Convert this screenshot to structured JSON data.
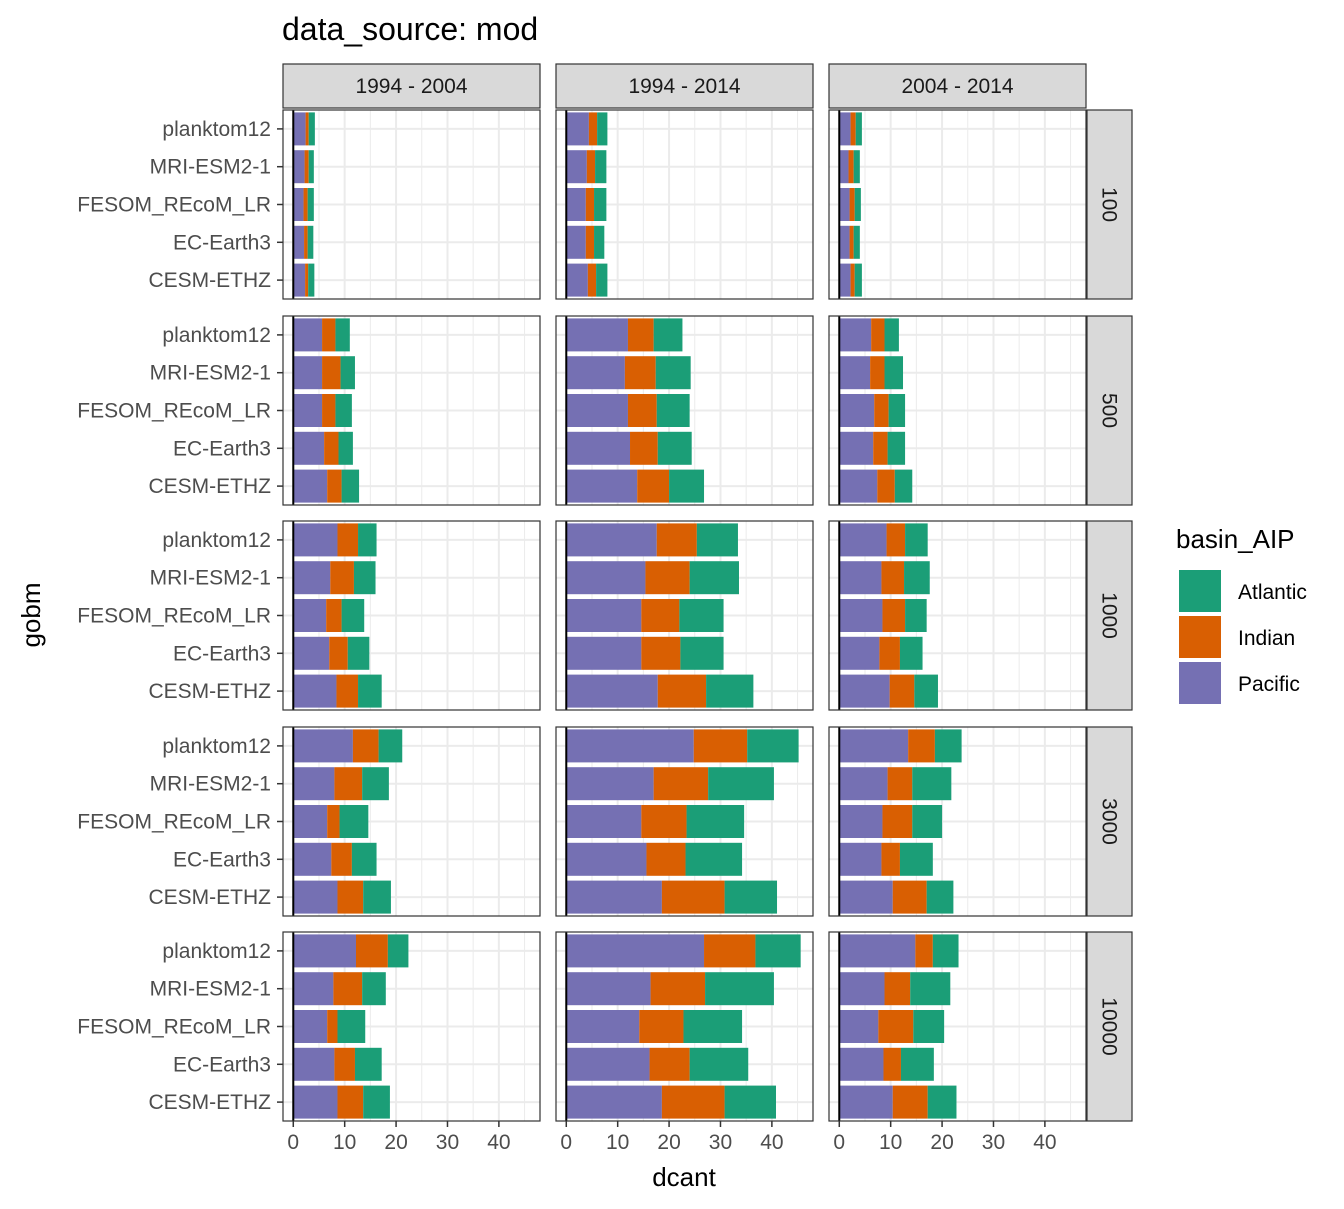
{
  "chart_data": {
    "type": "bar",
    "orientation": "horizontal",
    "stacked": true,
    "title": "data_source: mod",
    "xlabel": "dcant",
    "ylabel": "gobm",
    "xlim": [
      -2,
      48
    ],
    "x_ticks": [
      "0",
      "10",
      "20",
      "30",
      "40"
    ],
    "grid": true,
    "legend": {
      "title": "basin_AIP",
      "position": "right",
      "entries": [
        {
          "name": "Atlantic",
          "color": "#1B9E77"
        },
        {
          "name": "Indian",
          "color": "#D95F02"
        },
        {
          "name": "Pacific",
          "color": "#7570B3"
        }
      ]
    },
    "categories": [
      "planktom12",
      "MRI-ESM2-1",
      "FESOM_REcoM_LR",
      "EC-Earth3",
      "CESM-ETHZ"
    ],
    "columns": [
      "1994 - 2004",
      "1994 - 2014",
      "2004 - 2014"
    ],
    "rows": [
      "100",
      "500",
      "1000",
      "3000",
      "10000"
    ],
    "series_order": [
      "Pacific",
      "Indian",
      "Atlantic"
    ],
    "panels": [
      {
        "row": "100",
        "column": "1994 - 2004",
        "values": {
          "planktom12": {
            "Pacific": 2.4,
            "Indian": 0.6,
            "Atlantic": 1.2
          },
          "MRI-ESM2-1": {
            "Pacific": 2.2,
            "Indian": 0.8,
            "Atlantic": 1.0
          },
          "FESOM_REcoM_LR": {
            "Pacific": 2.0,
            "Indian": 0.8,
            "Atlantic": 1.2
          },
          "EC-Earth3": {
            "Pacific": 2.1,
            "Indian": 0.7,
            "Atlantic": 1.1
          },
          "CESM-ETHZ": {
            "Pacific": 2.3,
            "Indian": 0.6,
            "Atlantic": 1.2
          }
        }
      },
      {
        "row": "100",
        "column": "1994 - 2014",
        "values": {
          "planktom12": {
            "Pacific": 4.4,
            "Indian": 1.6,
            "Atlantic": 2.0
          },
          "MRI-ESM2-1": {
            "Pacific": 4.0,
            "Indian": 1.6,
            "Atlantic": 2.2
          },
          "FESOM_REcoM_LR": {
            "Pacific": 3.8,
            "Indian": 1.6,
            "Atlantic": 2.4
          },
          "EC-Earth3": {
            "Pacific": 3.8,
            "Indian": 1.6,
            "Atlantic": 2.0
          },
          "CESM-ETHZ": {
            "Pacific": 4.2,
            "Indian": 1.6,
            "Atlantic": 2.2
          }
        }
      },
      {
        "row": "100",
        "column": "2004 - 2014",
        "values": {
          "planktom12": {
            "Pacific": 2.2,
            "Indian": 1.0,
            "Atlantic": 1.2
          },
          "MRI-ESM2-1": {
            "Pacific": 1.8,
            "Indian": 1.0,
            "Atlantic": 1.2
          },
          "FESOM_REcoM_LR": {
            "Pacific": 2.0,
            "Indian": 1.0,
            "Atlantic": 1.2
          },
          "EC-Earth3": {
            "Pacific": 2.0,
            "Indian": 0.8,
            "Atlantic": 1.2
          },
          "CESM-ETHZ": {
            "Pacific": 2.2,
            "Indian": 0.8,
            "Atlantic": 1.4
          }
        }
      },
      {
        "row": "500",
        "column": "1994 - 2004",
        "values": {
          "planktom12": {
            "Pacific": 5.6,
            "Indian": 2.6,
            "Atlantic": 2.8
          },
          "MRI-ESM2-1": {
            "Pacific": 5.6,
            "Indian": 3.6,
            "Atlantic": 2.8
          },
          "FESOM_REcoM_LR": {
            "Pacific": 5.6,
            "Indian": 2.6,
            "Atlantic": 3.2
          },
          "EC-Earth3": {
            "Pacific": 6.0,
            "Indian": 2.8,
            "Atlantic": 2.8
          },
          "CESM-ETHZ": {
            "Pacific": 6.6,
            "Indian": 2.8,
            "Atlantic": 3.4
          }
        }
      },
      {
        "row": "500",
        "column": "1994 - 2014",
        "values": {
          "planktom12": {
            "Pacific": 12.0,
            "Indian": 5.0,
            "Atlantic": 5.6
          },
          "MRI-ESM2-1": {
            "Pacific": 11.4,
            "Indian": 6.0,
            "Atlantic": 6.8
          },
          "FESOM_REcoM_LR": {
            "Pacific": 12.0,
            "Indian": 5.6,
            "Atlantic": 6.4
          },
          "EC-Earth3": {
            "Pacific": 12.4,
            "Indian": 5.4,
            "Atlantic": 6.6
          },
          "CESM-ETHZ": {
            "Pacific": 13.8,
            "Indian": 6.2,
            "Atlantic": 6.8
          }
        }
      },
      {
        "row": "500",
        "column": "2004 - 2014",
        "values": {
          "planktom12": {
            "Pacific": 6.2,
            "Indian": 2.6,
            "Atlantic": 2.8
          },
          "MRI-ESM2-1": {
            "Pacific": 6.0,
            "Indian": 2.8,
            "Atlantic": 3.6
          },
          "FESOM_REcoM_LR": {
            "Pacific": 6.8,
            "Indian": 2.8,
            "Atlantic": 3.2
          },
          "EC-Earth3": {
            "Pacific": 6.6,
            "Indian": 2.8,
            "Atlantic": 3.4
          },
          "CESM-ETHZ": {
            "Pacific": 7.4,
            "Indian": 3.4,
            "Atlantic": 3.4
          }
        }
      },
      {
        "row": "1000",
        "column": "1994 - 2004",
        "values": {
          "planktom12": {
            "Pacific": 8.6,
            "Indian": 4.0,
            "Atlantic": 3.6
          },
          "MRI-ESM2-1": {
            "Pacific": 7.2,
            "Indian": 4.6,
            "Atlantic": 4.2
          },
          "FESOM_REcoM_LR": {
            "Pacific": 6.4,
            "Indian": 3.0,
            "Atlantic": 4.4
          },
          "EC-Earth3": {
            "Pacific": 7.0,
            "Indian": 3.6,
            "Atlantic": 4.2
          },
          "CESM-ETHZ": {
            "Pacific": 8.4,
            "Indian": 4.2,
            "Atlantic": 4.6
          }
        }
      },
      {
        "row": "1000",
        "column": "1994 - 2014",
        "values": {
          "planktom12": {
            "Pacific": 17.6,
            "Indian": 7.8,
            "Atlantic": 8.0
          },
          "MRI-ESM2-1": {
            "Pacific": 15.4,
            "Indian": 8.6,
            "Atlantic": 9.6
          },
          "FESOM_REcoM_LR": {
            "Pacific": 14.6,
            "Indian": 7.4,
            "Atlantic": 8.6
          },
          "EC-Earth3": {
            "Pacific": 14.6,
            "Indian": 7.6,
            "Atlantic": 8.4
          },
          "CESM-ETHZ": {
            "Pacific": 17.8,
            "Indian": 9.4,
            "Atlantic": 9.2
          }
        }
      },
      {
        "row": "1000",
        "column": "2004 - 2014",
        "values": {
          "planktom12": {
            "Pacific": 9.2,
            "Indian": 3.6,
            "Atlantic": 4.4
          },
          "MRI-ESM2-1": {
            "Pacific": 8.2,
            "Indian": 4.4,
            "Atlantic": 5.0
          },
          "FESOM_REcoM_LR": {
            "Pacific": 8.4,
            "Indian": 4.4,
            "Atlantic": 4.2
          },
          "EC-Earth3": {
            "Pacific": 7.8,
            "Indian": 4.0,
            "Atlantic": 4.4
          },
          "CESM-ETHZ": {
            "Pacific": 9.8,
            "Indian": 4.8,
            "Atlantic": 4.6
          }
        }
      },
      {
        "row": "3000",
        "column": "1994 - 2004",
        "values": {
          "planktom12": {
            "Pacific": 11.6,
            "Indian": 5.0,
            "Atlantic": 4.6
          },
          "MRI-ESM2-1": {
            "Pacific": 8.0,
            "Indian": 5.4,
            "Atlantic": 5.2
          },
          "FESOM_REcoM_LR": {
            "Pacific": 6.6,
            "Indian": 2.4,
            "Atlantic": 5.6
          },
          "EC-Earth3": {
            "Pacific": 7.4,
            "Indian": 4.0,
            "Atlantic": 4.8
          },
          "CESM-ETHZ": {
            "Pacific": 8.6,
            "Indian": 5.0,
            "Atlantic": 5.4
          }
        }
      },
      {
        "row": "3000",
        "column": "1994 - 2014",
        "values": {
          "planktom12": {
            "Pacific": 24.8,
            "Indian": 10.4,
            "Atlantic": 10.0
          },
          "MRI-ESM2-1": {
            "Pacific": 17.0,
            "Indian": 10.6,
            "Atlantic": 12.8
          },
          "FESOM_REcoM_LR": {
            "Pacific": 14.6,
            "Indian": 8.8,
            "Atlantic": 11.2
          },
          "EC-Earth3": {
            "Pacific": 15.6,
            "Indian": 7.6,
            "Atlantic": 11.0
          },
          "CESM-ETHZ": {
            "Pacific": 18.6,
            "Indian": 12.2,
            "Atlantic": 10.2
          }
        }
      },
      {
        "row": "3000",
        "column": "2004 - 2014",
        "values": {
          "planktom12": {
            "Pacific": 13.4,
            "Indian": 5.2,
            "Atlantic": 5.2
          },
          "MRI-ESM2-1": {
            "Pacific": 9.4,
            "Indian": 4.8,
            "Atlantic": 7.6
          },
          "FESOM_REcoM_LR": {
            "Pacific": 8.4,
            "Indian": 5.8,
            "Atlantic": 5.8
          },
          "EC-Earth3": {
            "Pacific": 8.2,
            "Indian": 3.6,
            "Atlantic": 6.4
          },
          "CESM-ETHZ": {
            "Pacific": 10.4,
            "Indian": 6.6,
            "Atlantic": 5.2
          }
        }
      },
      {
        "row": "10000",
        "column": "1994 - 2004",
        "values": {
          "planktom12": {
            "Pacific": 12.2,
            "Indian": 6.2,
            "Atlantic": 4.0
          },
          "MRI-ESM2-1": {
            "Pacific": 7.8,
            "Indian": 5.6,
            "Atlantic": 4.6
          },
          "FESOM_REcoM_LR": {
            "Pacific": 6.6,
            "Indian": 2.0,
            "Atlantic": 5.4
          },
          "EC-Earth3": {
            "Pacific": 8.0,
            "Indian": 4.0,
            "Atlantic": 5.2
          },
          "CESM-ETHZ": {
            "Pacific": 8.6,
            "Indian": 5.0,
            "Atlantic": 5.2
          }
        }
      },
      {
        "row": "10000",
        "column": "1994 - 2014",
        "values": {
          "planktom12": {
            "Pacific": 26.8,
            "Indian": 10.0,
            "Atlantic": 8.8
          },
          "MRI-ESM2-1": {
            "Pacific": 16.4,
            "Indian": 10.6,
            "Atlantic": 13.4
          },
          "FESOM_REcoM_LR": {
            "Pacific": 14.2,
            "Indian": 8.6,
            "Atlantic": 11.4
          },
          "EC-Earth3": {
            "Pacific": 16.2,
            "Indian": 7.8,
            "Atlantic": 11.4
          },
          "CESM-ETHZ": {
            "Pacific": 18.6,
            "Indian": 12.2,
            "Atlantic": 10.0
          }
        }
      },
      {
        "row": "10000",
        "column": "2004 - 2014",
        "values": {
          "planktom12": {
            "Pacific": 14.8,
            "Indian": 3.4,
            "Atlantic": 5.0
          },
          "MRI-ESM2-1": {
            "Pacific": 8.8,
            "Indian": 5.0,
            "Atlantic": 7.8
          },
          "FESOM_REcoM_LR": {
            "Pacific": 7.6,
            "Indian": 6.8,
            "Atlantic": 6.0
          },
          "EC-Earth3": {
            "Pacific": 8.6,
            "Indian": 3.4,
            "Atlantic": 6.4
          },
          "CESM-ETHZ": {
            "Pacific": 10.4,
            "Indian": 6.8,
            "Atlantic": 5.6
          }
        }
      }
    ]
  }
}
